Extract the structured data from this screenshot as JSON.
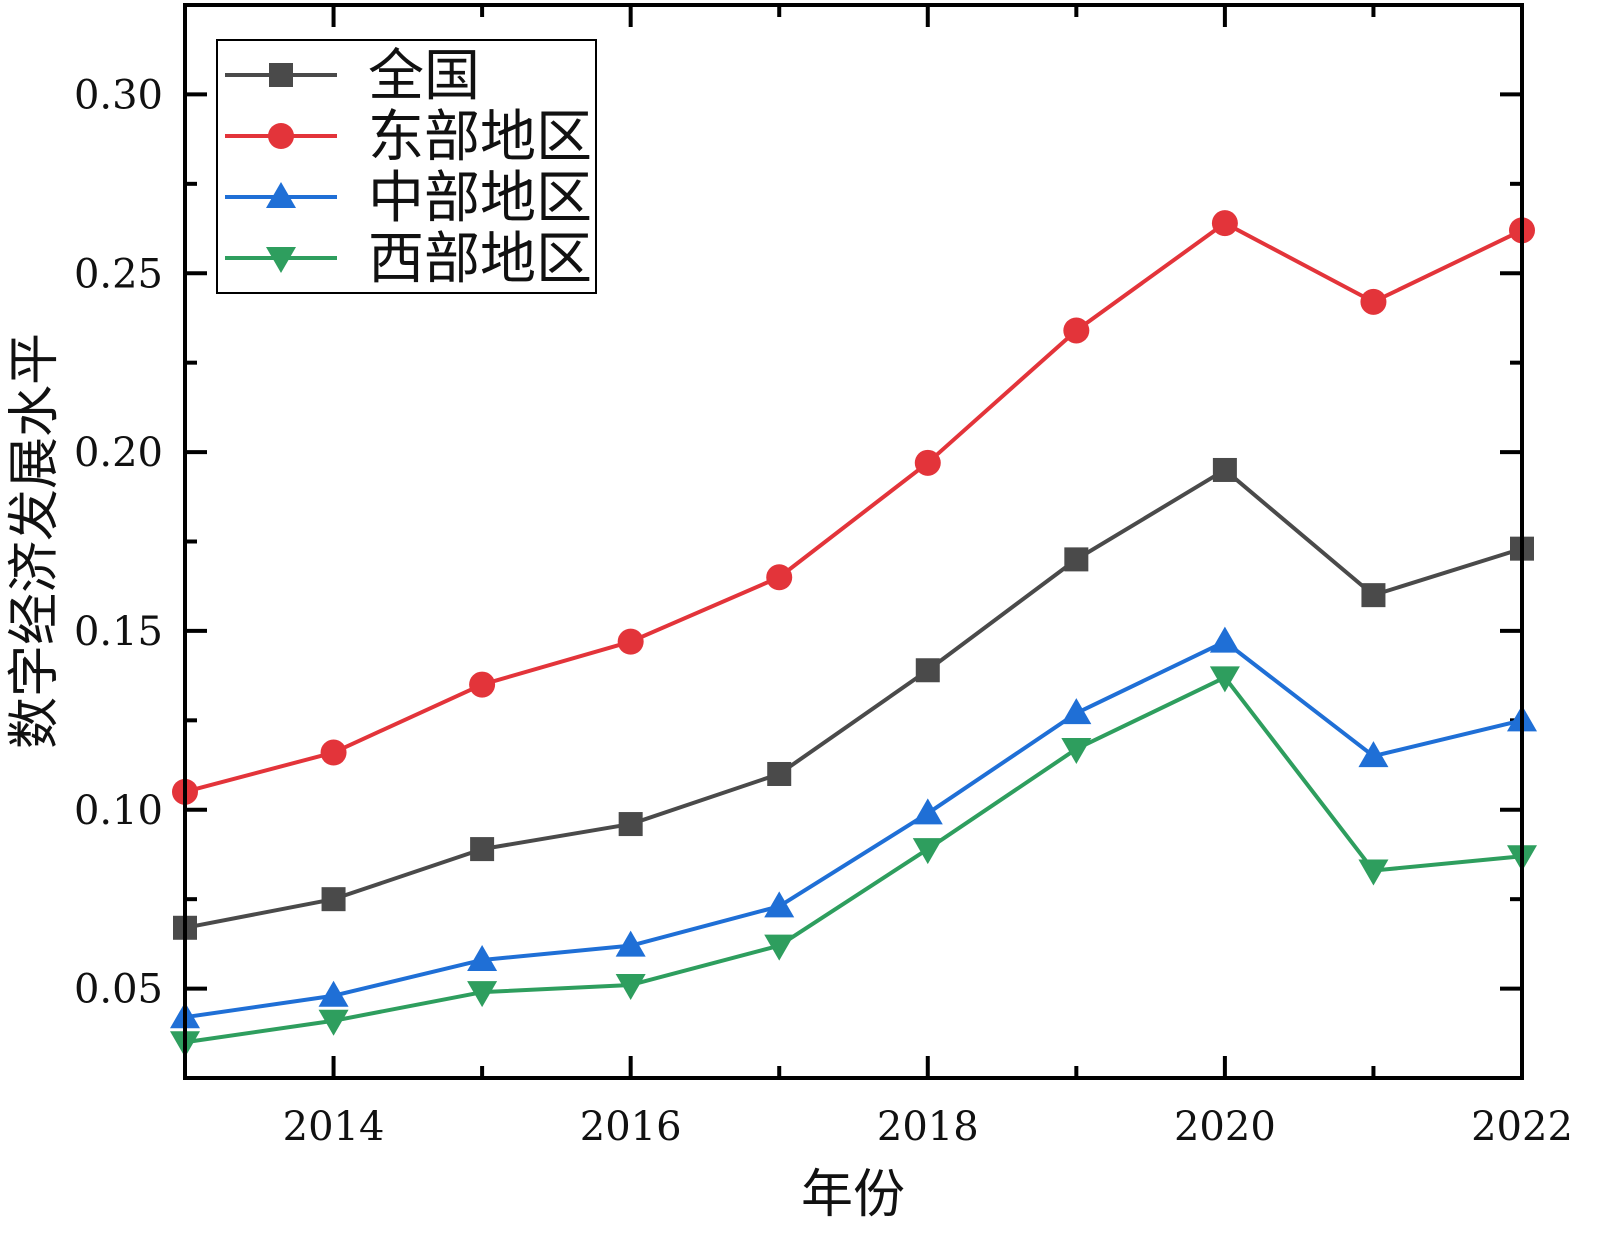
{
  "chart_data": {
    "type": "line",
    "xlabel": "年份",
    "ylabel": "数字经济发展水平",
    "xlim": [
      2013,
      2022
    ],
    "ylim": [
      0.025,
      0.325
    ],
    "x_ticks": [
      2014,
      2016,
      2018,
      2020,
      2022
    ],
    "x_tick_labels": [
      "2014",
      "2016",
      "2018",
      "2020",
      "2022"
    ],
    "y_ticks": [
      0.05,
      0.1,
      0.15,
      0.2,
      0.25,
      0.3
    ],
    "y_tick_labels": [
      "0.05",
      "0.10",
      "0.15",
      "0.20",
      "0.25",
      "0.30"
    ],
    "grid": false,
    "legend_position": "top-left",
    "x": [
      2013,
      2014,
      2015,
      2016,
      2017,
      2018,
      2019,
      2020,
      2021,
      2022
    ],
    "series": [
      {
        "name": "全国",
        "color": "#4a4a4a",
        "marker": "square",
        "values": [
          0.067,
          0.075,
          0.089,
          0.096,
          0.11,
          0.139,
          0.17,
          0.195,
          0.16,
          0.173
        ]
      },
      {
        "name": "东部地区",
        "color": "#e3343a",
        "marker": "circle",
        "values": [
          0.105,
          0.116,
          0.135,
          0.147,
          0.165,
          0.197,
          0.234,
          0.264,
          0.242,
          0.262
        ]
      },
      {
        "name": "中部地区",
        "color": "#1f6fd6",
        "marker": "triangle-up",
        "values": [
          0.042,
          0.048,
          0.058,
          0.062,
          0.073,
          0.099,
          0.127,
          0.147,
          0.115,
          0.125
        ]
      },
      {
        "name": "西部地区",
        "color": "#2e9e5e",
        "marker": "triangle-down",
        "values": [
          0.035,
          0.041,
          0.049,
          0.051,
          0.062,
          0.089,
          0.117,
          0.137,
          0.083,
          0.087
        ]
      }
    ]
  }
}
